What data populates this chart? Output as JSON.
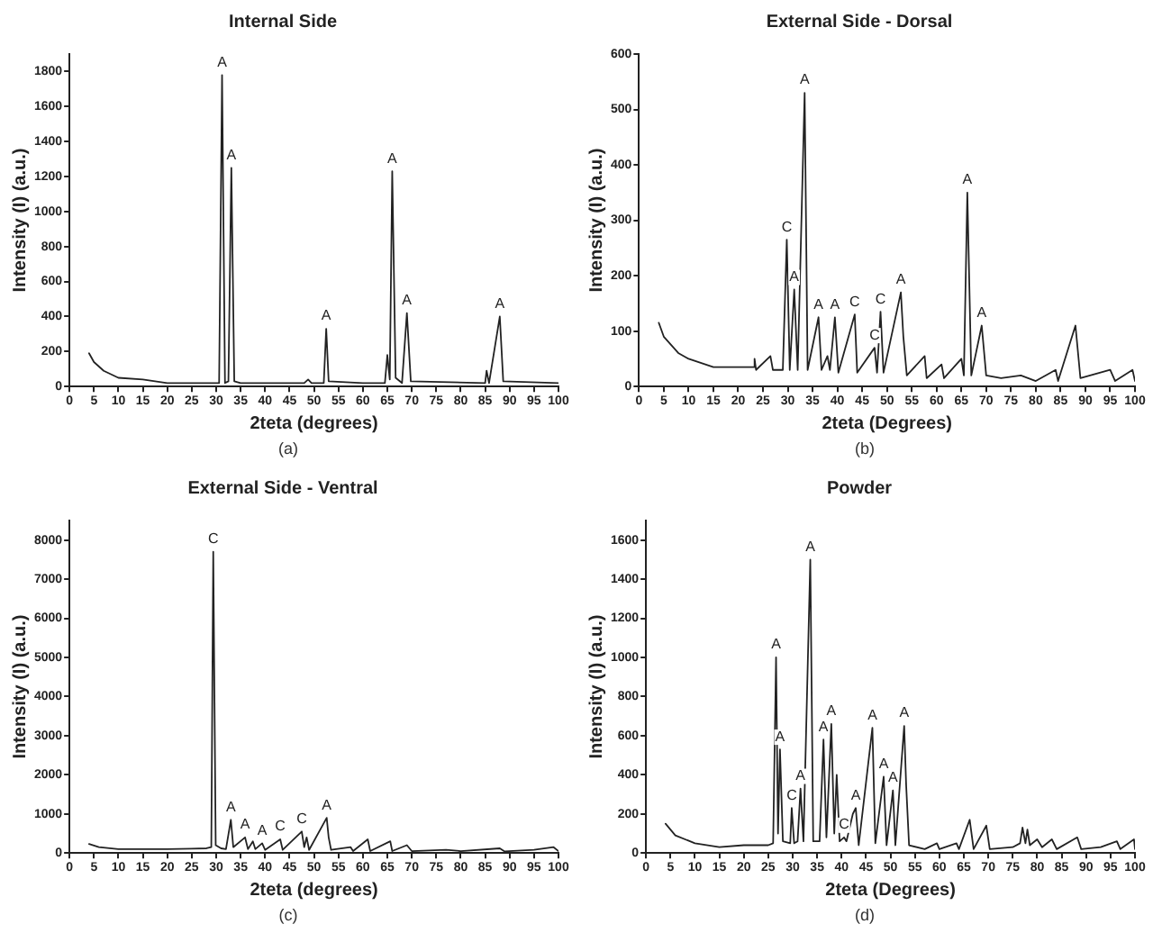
{
  "chart_data": [
    {
      "type": "line",
      "title": "Internal Side",
      "xlabel": "2teta (degrees)",
      "ylabel": "Intensity (I) (a.u.)",
      "xlim": [
        0,
        100
      ],
      "xticks": [
        0,
        5,
        10,
        15,
        20,
        25,
        30,
        35,
        40,
        45,
        50,
        55,
        60,
        65,
        70,
        75,
        80,
        85,
        90,
        95,
        100
      ],
      "ylim": [
        0,
        1900
      ],
      "yticks": [
        0,
        200,
        400,
        600,
        800,
        1000,
        1200,
        1400,
        1600,
        1800
      ],
      "grid": false,
      "legend": false,
      "marker": "none",
      "x": [
        4,
        5,
        7,
        10,
        15,
        20,
        25,
        30,
        30.6,
        31.2,
        31.8,
        32.5,
        33.1,
        33.7,
        35,
        48,
        48.8,
        49.5,
        52,
        52.5,
        53,
        60,
        64.5,
        65,
        65.5,
        66,
        66.7,
        68,
        69,
        69.8,
        85,
        85.3,
        85.8,
        88,
        88.7,
        100
      ],
      "series": [
        {
          "color": "#222222",
          "values": [
            190,
            140,
            90,
            50,
            40,
            20,
            20,
            20,
            20,
            1780,
            20,
            30,
            1250,
            30,
            20,
            20,
            40,
            20,
            20,
            330,
            30,
            20,
            20,
            180,
            40,
            1230,
            50,
            20,
            420,
            30,
            20,
            90,
            20,
            400,
            30,
            20
          ]
        }
      ],
      "annotations": [
        {
          "text": "A",
          "x": 31.2,
          "y": 1780
        },
        {
          "text": "A",
          "x": 33.1,
          "y": 1250
        },
        {
          "text": "A",
          "x": 52.5,
          "y": 330
        },
        {
          "text": "A",
          "x": 66,
          "y": 1230
        },
        {
          "text": "A",
          "x": 69,
          "y": 420
        },
        {
          "text": "A",
          "x": 88,
          "y": 400
        },
        "(a)"
      ]
    },
    {
      "type": "line",
      "title": "External Side - Dorsal",
      "xlabel": "2teta (Degrees)",
      "ylabel": "Intensity (I) (a.u.)",
      "xlim": [
        0,
        100
      ],
      "xticks": [
        0,
        5,
        10,
        15,
        20,
        25,
        30,
        35,
        40,
        45,
        50,
        55,
        60,
        65,
        70,
        75,
        80,
        85,
        90,
        95,
        100
      ],
      "ylim": [
        0,
        600
      ],
      "yticks": [
        0,
        100,
        200,
        300,
        400,
        500,
        600
      ],
      "grid": false,
      "legend": false,
      "marker": "none",
      "x": [
        4,
        5,
        8,
        10,
        15,
        20,
        23,
        23.3,
        23.6,
        26.5,
        27,
        29,
        29.8,
        30.4,
        31.3,
        32,
        33.4,
        34,
        36.2,
        36.8,
        38,
        38.5,
        39.5,
        40.2,
        43.5,
        44,
        47.5,
        48,
        48.7,
        49.3,
        52.8,
        53.3,
        54,
        57.6,
        58,
        61,
        61.5,
        65,
        65.5,
        66.2,
        67,
        69.1,
        70,
        73,
        77,
        80,
        84,
        84.5,
        88,
        89,
        95,
        96,
        99.5,
        100
      ],
      "series": [
        {
          "color": "#222222",
          "values": [
            115,
            90,
            60,
            50,
            35,
            35,
            35,
            50,
            30,
            55,
            30,
            30,
            265,
            30,
            175,
            30,
            530,
            30,
            125,
            30,
            55,
            30,
            125,
            25,
            130,
            25,
            70,
            25,
            135,
            25,
            170,
            90,
            20,
            55,
            15,
            40,
            15,
            50,
            20,
            350,
            20,
            110,
            20,
            15,
            20,
            10,
            30,
            10,
            110,
            15,
            30,
            10,
            30,
            10
          ]
        }
      ],
      "annotations": [
        {
          "text": "C",
          "x": 29.8,
          "y": 265
        },
        {
          "text": "A",
          "x": 31.3,
          "y": 175
        },
        {
          "text": "A",
          "x": 33.4,
          "y": 530
        },
        {
          "text": "A",
          "x": 36.2,
          "y": 125
        },
        {
          "text": "A",
          "x": 39.5,
          "y": 125
        },
        {
          "text": "C",
          "x": 43.5,
          "y": 130
        },
        {
          "text": "C",
          "x": 47.5,
          "y": 70
        },
        {
          "text": "C",
          "x": 48.7,
          "y": 135
        },
        {
          "text": "A",
          "x": 52.8,
          "y": 170
        },
        {
          "text": "A",
          "x": 66.2,
          "y": 350
        },
        {
          "text": "A",
          "x": 69.1,
          "y": 110
        },
        "(b)"
      ]
    },
    {
      "type": "line",
      "title": "External Side - Ventral",
      "xlabel": "2teta (degrees)",
      "ylabel": "Intensity (I) (a.u.)",
      "xlim": [
        0,
        100
      ],
      "xticks": [
        0,
        5,
        10,
        15,
        20,
        25,
        30,
        35,
        40,
        45,
        50,
        55,
        60,
        65,
        70,
        75,
        80,
        85,
        90,
        95,
        100
      ],
      "ylim": [
        0,
        8500
      ],
      "yticks": [
        0,
        1000,
        2000,
        3000,
        4000,
        5000,
        6000,
        7000,
        8000
      ],
      "grid": false,
      "legend": false,
      "marker": "none",
      "x": [
        4,
        6,
        10,
        20,
        25,
        28,
        29,
        29.4,
        29.9,
        31,
        32,
        33,
        33.5,
        35.9,
        36.5,
        37.5,
        38,
        39.4,
        40,
        43.1,
        43.6,
        47.5,
        48,
        48.5,
        49,
        52.6,
        53,
        53.5,
        57.5,
        58,
        61,
        61.5,
        65.6,
        66,
        69,
        70,
        77,
        80,
        88,
        89,
        95,
        99,
        100
      ],
      "series": [
        {
          "color": "#222222",
          "values": [
            230,
            150,
            100,
            100,
            110,
            120,
            150,
            7700,
            200,
            120,
            100,
            850,
            150,
            400,
            100,
            300,
            100,
            250,
            80,
            350,
            80,
            550,
            150,
            400,
            80,
            900,
            400,
            80,
            150,
            50,
            350,
            50,
            300,
            50,
            200,
            50,
            80,
            50,
            120,
            40,
            80,
            150,
            50
          ]
        }
      ],
      "annotations": [
        {
          "text": "C",
          "x": 29.4,
          "y": 7700
        },
        {
          "text": "A",
          "x": 33,
          "y": 850
        },
        {
          "text": "A",
          "x": 35.9,
          "y": 400
        },
        {
          "text": "A",
          "x": 39.4,
          "y": 250
        },
        {
          "text": "C",
          "x": 43.1,
          "y": 350
        },
        {
          "text": "C",
          "x": 47.5,
          "y": 550
        },
        {
          "text": "A",
          "x": 52.6,
          "y": 900
        },
        "(c)"
      ]
    },
    {
      "type": "line",
      "title": "Powder",
      "xlabel": "2teta (Degrees)",
      "ylabel": "Intensity (I) (a.u.)",
      "xlim": [
        0,
        100
      ],
      "xticks": [
        0,
        5,
        10,
        15,
        20,
        25,
        30,
        35,
        40,
        45,
        50,
        55,
        60,
        65,
        70,
        75,
        80,
        85,
        90,
        95,
        100
      ],
      "ylim": [
        0,
        1700
      ],
      "yticks": [
        0,
        200,
        400,
        600,
        800,
        1000,
        1200,
        1400,
        1600
      ],
      "grid": false,
      "legend": false,
      "marker": "none",
      "x": [
        4,
        6,
        10,
        15,
        20,
        25,
        26,
        26.6,
        27,
        27.4,
        28,
        29.5,
        29.8,
        30.3,
        31,
        31.6,
        32.2,
        33.6,
        34.2,
        35.5,
        36.3,
        36.9,
        37.9,
        38.5,
        39,
        39.6,
        40.5,
        41,
        42.3,
        42.9,
        43.5,
        46.3,
        46.9,
        48.6,
        49.2,
        50.5,
        51,
        52.8,
        53.2,
        53.8,
        57,
        59.5,
        60,
        63.5,
        64,
        66.2,
        67,
        69.6,
        70.3,
        75,
        76.5,
        77,
        77.6,
        78,
        78.5,
        80,
        81,
        83,
        84,
        88.2,
        89,
        93,
        96.3,
        97,
        99.8,
        100
      ],
      "series": [
        {
          "color": "#222222",
          "values": [
            150,
            90,
            50,
            30,
            40,
            40,
            50,
            1000,
            100,
            530,
            60,
            50,
            230,
            50,
            60,
            330,
            60,
            1500,
            60,
            60,
            580,
            80,
            660,
            100,
            400,
            60,
            80,
            60,
            200,
            230,
            40,
            640,
            50,
            390,
            40,
            320,
            40,
            650,
            350,
            40,
            20,
            50,
            20,
            50,
            20,
            170,
            20,
            140,
            20,
            30,
            50,
            130,
            50,
            120,
            40,
            70,
            30,
            70,
            20,
            80,
            20,
            30,
            60,
            20,
            70,
            20
          ]
        }
      ],
      "annotations": [
        {
          "text": "A",
          "x": 26.6,
          "y": 1000
        },
        {
          "text": "A",
          "x": 27.4,
          "y": 530
        },
        {
          "text": "C",
          "x": 29.8,
          "y": 230
        },
        {
          "text": "A",
          "x": 31.6,
          "y": 330
        },
        {
          "text": "A",
          "x": 33.6,
          "y": 1500
        },
        {
          "text": "A",
          "x": 36.3,
          "y": 580
        },
        {
          "text": "A",
          "x": 37.9,
          "y": 660
        },
        {
          "text": "C",
          "x": 40.5,
          "y": 80
        },
        {
          "text": "A",
          "x": 42.9,
          "y": 230
        },
        {
          "text": "A",
          "x": 46.3,
          "y": 640
        },
        {
          "text": "A",
          "x": 48.6,
          "y": 390
        },
        {
          "text": "A",
          "x": 50.5,
          "y": 320
        },
        {
          "text": "A",
          "x": 52.8,
          "y": 650
        },
        "(d)"
      ]
    }
  ]
}
